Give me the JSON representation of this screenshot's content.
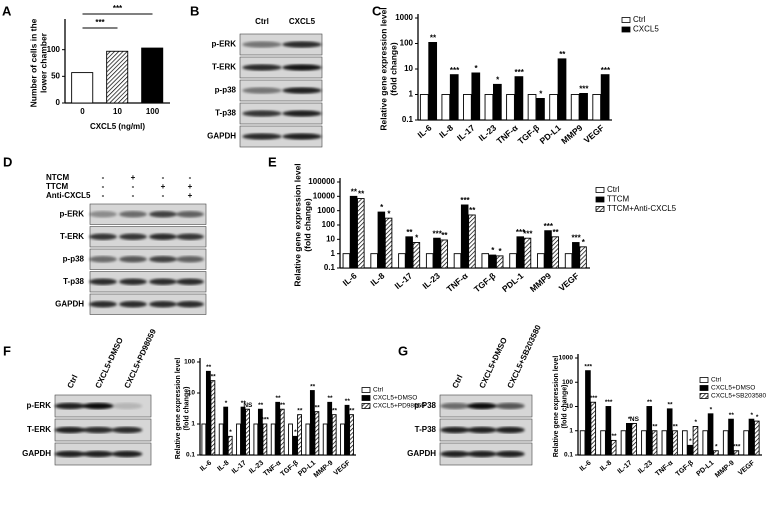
{
  "chart_data": [
    {
      "type": "bar",
      "panel": "A",
      "ylabel": [
        "Number of cells in the",
        "lower chamber"
      ],
      "xlabel": "CXCL5 (ng/ml)",
      "categories": [
        "0",
        "10",
        "100"
      ],
      "values": [
        57,
        97,
        103
      ],
      "fills": [
        "white",
        "hatch",
        "black"
      ],
      "ylim": [
        0,
        150
      ],
      "yticks": [
        0,
        50,
        100
      ],
      "annotations": [
        "***",
        "***"
      ]
    },
    {
      "type": "bar",
      "panel": "C",
      "ylabel": [
        "Relative gene expression level",
        "(fold change)"
      ],
      "log": true,
      "categories": [
        "IL-6",
        "IL-8",
        "IL-17",
        "IL-23",
        "TNF-α",
        "TGF-β",
        "PD-L1",
        "MMP9",
        "VEGF"
      ],
      "series": [
        {
          "name": "Ctrl",
          "fill": "white",
          "values": [
            1,
            1,
            1,
            1,
            1,
            1,
            1,
            1,
            1
          ]
        },
        {
          "name": "CXCL5",
          "fill": "black",
          "values": [
            110,
            6,
            7,
            2.5,
            5,
            0.7,
            25,
            1.1,
            6
          ],
          "annotations": [
            "**",
            "***",
            "*",
            "*",
            "***",
            "*",
            "**",
            "***",
            "***"
          ]
        }
      ],
      "ylim": [
        0.1,
        1000
      ],
      "yticks": [
        0.1,
        1,
        10,
        100,
        1000
      ],
      "legend": "top-right"
    },
    {
      "type": "bar",
      "panel": "E",
      "ylabel": [
        "Relative gene expression level",
        "(fold change)"
      ],
      "log": true,
      "categories": [
        "IL-6",
        "IL-8",
        "IL-17",
        "IL-23",
        "TNF-α",
        "TGF-β",
        "PDL-1",
        "MMP9",
        "VEGF"
      ],
      "series": [
        {
          "name": "Ctrl",
          "fill": "white",
          "values": [
            1,
            1,
            1,
            1,
            1,
            1,
            1,
            1,
            1
          ]
        },
        {
          "name": "TTCM",
          "fill": "black",
          "values": [
            10000,
            800,
            15,
            12,
            2500,
            0.8,
            15,
            40,
            6
          ],
          "annotations": [
            "**",
            "*",
            "**",
            "***",
            "***",
            "*",
            "***",
            "***",
            "***"
          ]
        },
        {
          "name": "TTCM+Anti-CXCL5",
          "fill": "hatch",
          "values": [
            7000,
            300,
            6,
            9,
            500,
            0.7,
            12,
            15,
            3
          ],
          "annotations": [
            "**",
            "*",
            "*",
            "**",
            "**",
            "*",
            "***",
            "**",
            "*"
          ]
        }
      ],
      "ylim": [
        0.1,
        100000
      ],
      "yticks": [
        0.1,
        1,
        10,
        100,
        1000,
        10000,
        100000
      ],
      "legend": "top-right"
    },
    {
      "type": "bar",
      "panel": "F",
      "ylabel": [
        "Relative gene expression level",
        "(fold change)"
      ],
      "log": true,
      "categories": [
        "IL-6",
        "IL-8",
        "IL-17",
        "IL-23",
        "TNF-α",
        "TGF-β",
        "PD-L1",
        "MMP-9",
        "VEGF"
      ],
      "series": [
        {
          "name": "Ctrl",
          "fill": "white",
          "values": [
            1,
            1,
            1,
            1,
            1,
            1,
            1,
            1,
            1
          ]
        },
        {
          "name": "CXCL5+DMSO",
          "fill": "black",
          "values": [
            50,
            3.5,
            3.5,
            3,
            5,
            0.4,
            12,
            5,
            4
          ],
          "annotations": [
            "**",
            "*",
            "**",
            "**",
            "**",
            "*",
            "**",
            "**",
            "**"
          ]
        },
        {
          "name": "CXCL5+PD98059",
          "fill": "hatch",
          "values": [
            25,
            0.4,
            3,
            1,
            3,
            2,
            2.5,
            2,
            2
          ],
          "annotations": [
            "**",
            "*",
            "NS",
            "***",
            "**",
            "**",
            "**",
            "**",
            "**"
          ]
        }
      ],
      "ylim": [
        0.1,
        100
      ],
      "yticks": [
        0.1,
        1,
        10,
        100
      ],
      "legend": "top-right"
    },
    {
      "type": "bar",
      "panel": "G",
      "ylabel": [
        "Relative gene expression level",
        "(fold change)"
      ],
      "log": true,
      "categories": [
        "IL-6",
        "IL-8",
        "IL-17",
        "IL-23",
        "TNF-α",
        "TGF-β",
        "PD-L1",
        "MMP-9",
        "VEGF"
      ],
      "series": [
        {
          "name": "Ctrl",
          "fill": "white",
          "values": [
            1,
            1,
            1,
            1,
            1,
            1,
            1,
            1,
            1
          ]
        },
        {
          "name": "CXCL5+DMSO",
          "fill": "black",
          "values": [
            300,
            10,
            2,
            10,
            8,
            0.25,
            5,
            3,
            3
          ],
          "annotations": [
            "***",
            "***",
            "*",
            "**",
            "**",
            "*",
            "*",
            "**",
            "*"
          ]
        },
        {
          "name": "CXCL5+SB203580",
          "fill": "hatch",
          "values": [
            15,
            0.4,
            2,
            1,
            1,
            1.5,
            0.15,
            0.15,
            2.5
          ],
          "annotations": [
            "***",
            "**",
            "NS",
            "**",
            "**",
            "*",
            "*",
            "***",
            "*"
          ]
        }
      ],
      "ylim": [
        0.1,
        1000
      ],
      "yticks": [
        0.1,
        1,
        10,
        100,
        1000
      ],
      "legend": "top-right"
    }
  ],
  "blots": [
    {
      "panel": "B",
      "lanes": [
        "Ctrl",
        "CXCL5"
      ],
      "rows": [
        "p-ERK",
        "T-ERK",
        "p-p38",
        "T-p38",
        "GAPDH"
      ]
    },
    {
      "panel": "D",
      "conditions": [
        {
          "label": "NTCM",
          "signs": [
            "-",
            "+",
            "-",
            "-"
          ]
        },
        {
          "label": "TTCM",
          "signs": [
            "-",
            "-",
            "+",
            "+"
          ]
        },
        {
          "label": "Anti-CXCL5",
          "signs": [
            "-",
            "-",
            "-",
            "+"
          ]
        }
      ],
      "rows": [
        "p-ERK",
        "T-ERK",
        "p-p38",
        "T-p38",
        "GAPDH"
      ]
    },
    {
      "panel": "F",
      "lanes": [
        "Ctrl",
        "CXCL5+DMSO",
        "CXCL5+PD98059"
      ],
      "rows": [
        "p-ERK",
        "T-ERK",
        "GAPDH"
      ]
    },
    {
      "panel": "G",
      "lanes": [
        "Ctrl",
        "CXCL5+DMSO",
        "CXCL5+SB203580"
      ],
      "rows": [
        "p-P38",
        "T-P38",
        "GAPDH"
      ]
    }
  ]
}
